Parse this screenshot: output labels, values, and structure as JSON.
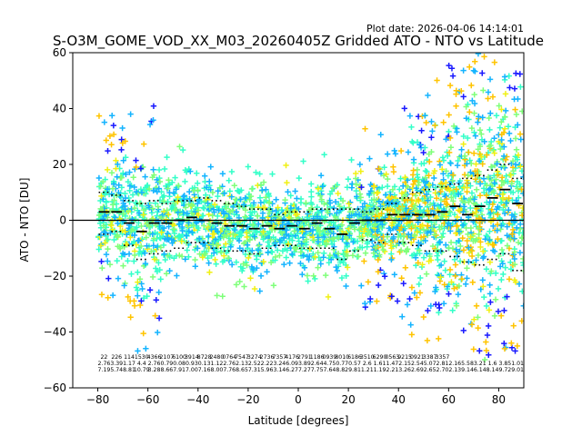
{
  "figure": {
    "plot_date": "Plot date: 2026-04-06 14:14:01"
  },
  "chart_data": {
    "type": "scatter",
    "title": "S-O3M_GOME_VOD_XX_M03_20260405Z Gridded ATO - NTO vs Latitude",
    "xlabel": "Latitude [degrees]",
    "ylabel": "ATO - NTO [DU]",
    "xlim": [
      -90,
      90
    ],
    "ylim": [
      -60,
      60
    ],
    "xticks": [
      -80,
      -60,
      -40,
      -20,
      0,
      20,
      40,
      60,
      80
    ],
    "yticks": [
      -60,
      -40,
      -20,
      0,
      20,
      40,
      60
    ],
    "xtick_labels": [
      "−80",
      "−60",
      "−40",
      "−20",
      "0",
      "20",
      "40",
      "60",
      "80"
    ],
    "ytick_labels": [
      "−60",
      "−40",
      "−20",
      "0",
      "20",
      "40",
      "60"
    ],
    "zero_line": 0,
    "bins": {
      "lat_centers": [
        -77.5,
        -72.5,
        -67.5,
        -62.5,
        -57.5,
        -52.5,
        -47.5,
        -42.5,
        -37.5,
        -32.5,
        -27.5,
        -22.5,
        -17.5,
        -12.5,
        -7.5,
        -2.5,
        2.5,
        7.5,
        12.5,
        17.5,
        22.5,
        27.5,
        32.5,
        37.5,
        42.5,
        47.5,
        52.5,
        57.5,
        62.5,
        67.5,
        72.5,
        77.5,
        82.5,
        87.5
      ],
      "mean": [
        3,
        3,
        -1,
        -4,
        -1,
        -1,
        0,
        1,
        0,
        -1,
        -2,
        -2,
        -3,
        -2,
        -3,
        -2,
        -3,
        -1,
        -3,
        -5,
        -1,
        0,
        0,
        2,
        2,
        2,
        2,
        3,
        5,
        2,
        5,
        8,
        11,
        6
      ],
      "upper": [
        10,
        9,
        7,
        6,
        7,
        6,
        7,
        7,
        8,
        7,
        6,
        5,
        4,
        4,
        2,
        3,
        3,
        4,
        4,
        4,
        4,
        3,
        4,
        6,
        8,
        10,
        11,
        12,
        13,
        15,
        16,
        18,
        20,
        15
      ],
      "lower": [
        -5,
        -4,
        -9,
        -14,
        -12,
        -11,
        -10,
        -8,
        -8,
        -10,
        -11,
        -11,
        -12,
        -10,
        -9,
        -9,
        -10,
        -10,
        -10,
        -14,
        -11,
        -7,
        -8,
        -5,
        -8,
        -9,
        -11,
        -11,
        -13,
        -15,
        -16,
        -14,
        -12,
        -18
      ]
    },
    "series": [
      {
        "name": "main",
        "color": "#33ffc8"
      },
      {
        "name": "light-green",
        "color": "#7fff7a"
      },
      {
        "name": "cyan-blue",
        "color": "#14b4ff"
      },
      {
        "name": "yellow",
        "color": "#f0f014"
      },
      {
        "name": "orange",
        "color": "#ffc400"
      },
      {
        "name": "dark-blue",
        "color": "#1a1aff"
      }
    ],
    "bin_counts": [
      "22",
      "226",
      "114",
      "1530",
      "4366",
      "2107",
      "6100",
      "3914",
      "8728",
      "2480",
      "0764",
      "7547",
      "3274",
      "2736",
      "7357",
      "4176",
      "2791",
      "1186",
      "0939",
      "8010",
      "6186",
      "3510",
      "6290",
      "0563",
      "9215",
      "0921",
      "3387",
      "3357",
      "",
      "",
      "",
      "",
      "",
      ""
    ],
    "bin_means_text": [
      "2.76",
      "3.39",
      "1.17",
      "4.4",
      "2.76",
      "0.79",
      "0.08",
      "0.93",
      "0.13",
      "1.12",
      "2.76",
      "2.13",
      "2.52",
      "2.22",
      "3.24",
      "6.09",
      "3.89",
      "2.64",
      "4.75",
      "0.77",
      "0.57",
      "2.6",
      "1.61",
      "1.47",
      "2.15",
      "2.54",
      "5.07",
      "2.81",
      "2.16",
      "5.58",
      "3.21",
      "1.6",
      "3.85",
      "1.01"
    ],
    "bin_std_text": [
      "7.19",
      "5.74",
      "8.81",
      "10.79",
      "3.28",
      "8.66",
      "7.91",
      "7.00",
      "7.16",
      "8.00",
      "7.76",
      "8.65",
      "7.31",
      "5.96",
      "3.14",
      "6.27",
      "7.27",
      "7.75",
      "7.64",
      "8.82",
      "9.81",
      "1.21",
      "1.19",
      "2.21",
      "3.26",
      "2.69",
      "2.65",
      "2.70",
      "2.13",
      "9.14",
      "6.14",
      "8.14",
      "9.72",
      "9.01"
    ]
  }
}
